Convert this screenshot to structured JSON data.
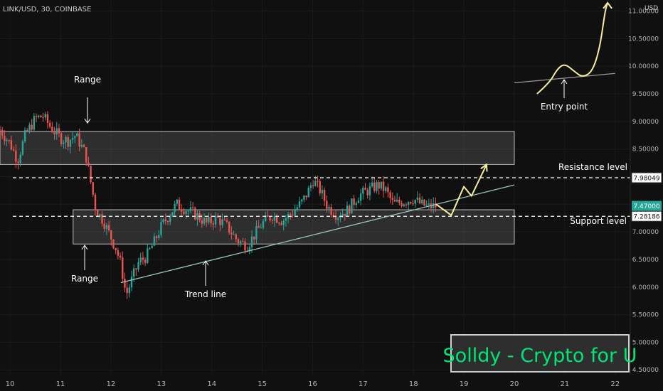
{
  "symbol_title": "LINK/USD, 30, COINBASE",
  "currency": "USD",
  "colors": {
    "background": "#101010",
    "candle_up": "#26a69a",
    "candle_down": "#ef5350",
    "annotation": "#ffffff",
    "arrow": "#f5ef9a",
    "zone_fill": "#7f7f7f",
    "watermark_text": "#00e676",
    "price_tag_last": "#26a69a"
  },
  "annotations": {
    "range_top": "Range",
    "range_bottom": "Range",
    "trend_line": "Trend line",
    "resistance": "Resistance level",
    "support": "Support level",
    "entry_point": "Entry point"
  },
  "watermark": "Solldy - Crypto for U",
  "chart_data": {
    "type": "candlestick",
    "x_axis_ticks": [
      "10",
      "11",
      "12",
      "13",
      "14",
      "15",
      "16",
      "17",
      "18",
      "19",
      "20",
      "21",
      "22"
    ],
    "y_axis_ticks": [
      "11.00000",
      "10.50000",
      "10.00000",
      "9.50000",
      "9.00000",
      "8.50000",
      "8.00000",
      "7.50000",
      "7.00000",
      "6.50000",
      "6.00000",
      "5.50000",
      "5.00000",
      "4.50000"
    ],
    "ylim": [
      4.4,
      11.2
    ],
    "xlim": [
      9.8,
      22.3
    ],
    "price_tags": [
      {
        "value": 7.98049,
        "text": "7.98049",
        "style": "outline"
      },
      {
        "value": 7.47,
        "text": "7.47000",
        "style": "last"
      },
      {
        "value": 7.28186,
        "text": "7.28186",
        "style": "outline"
      }
    ],
    "levels": {
      "resistance": 7.98049,
      "support": 7.28186
    },
    "zones": [
      {
        "name": "upper range",
        "x_start": 9.8,
        "x_end": 20.0,
        "y_low": 8.22,
        "y_high": 8.82
      },
      {
        "name": "lower range",
        "x_start": 11.25,
        "x_end": 20.0,
        "y_low": 6.78,
        "y_high": 7.4
      }
    ],
    "trend_line": {
      "x1": 12.2,
      "y1": 6.08,
      "x2": 20.0,
      "y2": 7.85
    },
    "price_path": [
      [
        9.8,
        8.85
      ],
      [
        10.0,
        8.6
      ],
      [
        10.15,
        8.3
      ],
      [
        10.3,
        8.75
      ],
      [
        10.5,
        9.05
      ],
      [
        10.65,
        9.1
      ],
      [
        10.8,
        8.9
      ],
      [
        11.0,
        8.7
      ],
      [
        11.15,
        8.65
      ],
      [
        11.3,
        8.75
      ],
      [
        11.5,
        8.4
      ],
      [
        11.6,
        7.9
      ],
      [
        11.7,
        7.4
      ],
      [
        11.85,
        7.2
      ],
      [
        12.0,
        6.9
      ],
      [
        12.1,
        6.7
      ],
      [
        12.2,
        6.4
      ],
      [
        12.3,
        5.85
      ],
      [
        12.4,
        6.1
      ],
      [
        12.55,
        6.45
      ],
      [
        12.7,
        6.55
      ],
      [
        12.85,
        6.8
      ],
      [
        13.0,
        7.1
      ],
      [
        13.15,
        7.3
      ],
      [
        13.3,
        7.5
      ],
      [
        13.5,
        7.4
      ],
      [
        13.7,
        7.3
      ],
      [
        13.9,
        7.15
      ],
      [
        14.1,
        7.25
      ],
      [
        14.3,
        7.1
      ],
      [
        14.5,
        6.85
      ],
      [
        14.7,
        6.75
      ],
      [
        14.85,
        6.95
      ],
      [
        15.0,
        7.15
      ],
      [
        15.2,
        7.3
      ],
      [
        15.4,
        7.2
      ],
      [
        15.6,
        7.35
      ],
      [
        15.8,
        7.55
      ],
      [
        15.95,
        7.8
      ],
      [
        16.0,
        7.95
      ],
      [
        16.15,
        7.75
      ],
      [
        16.3,
        7.45
      ],
      [
        16.5,
        7.3
      ],
      [
        16.7,
        7.4
      ],
      [
        16.9,
        7.65
      ],
      [
        17.1,
        7.75
      ],
      [
        17.3,
        7.85
      ],
      [
        17.45,
        7.75
      ],
      [
        17.6,
        7.5
      ],
      [
        17.8,
        7.55
      ],
      [
        18.0,
        7.6
      ],
      [
        18.15,
        7.5
      ],
      [
        18.3,
        7.45
      ],
      [
        18.45,
        7.47
      ]
    ],
    "projection_path": [
      [
        18.45,
        7.5
      ],
      [
        18.75,
        7.3
      ],
      [
        19.0,
        7.82
      ],
      [
        19.15,
        7.65
      ],
      [
        19.45,
        8.22
      ]
    ],
    "entry_sketch": {
      "line": {
        "x1": 20.0,
        "y1": 9.7,
        "x2": 22.0,
        "y2": 9.87
      },
      "curve": [
        [
          20.45,
          9.5
        ],
        [
          20.7,
          9.7
        ],
        [
          20.85,
          9.95
        ],
        [
          21.0,
          10.05
        ],
        [
          21.2,
          9.9
        ],
        [
          21.35,
          9.8
        ],
        [
          21.55,
          9.9
        ],
        [
          21.7,
          10.35
        ],
        [
          21.8,
          11.0
        ],
        [
          21.85,
          11.15
        ]
      ]
    }
  }
}
